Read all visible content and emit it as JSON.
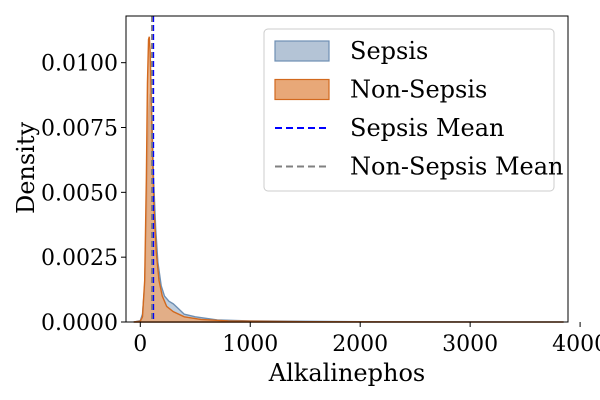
{
  "chart_data": {
    "type": "area",
    "xlabel": "Alkalinephos",
    "ylabel": "Density",
    "xlim": [
      -130,
      3890
    ],
    "ylim": [
      0,
      0.0118
    ],
    "xticks": [
      0,
      1000,
      2000,
      3000,
      4000
    ],
    "xtick_labels": [
      "0",
      "1000",
      "2000",
      "3000",
      "4000"
    ],
    "yticks": [
      0,
      0.0025,
      0.005,
      0.0075,
      0.01
    ],
    "ytick_labels": [
      "0.0000",
      "0.0025",
      "0.0050",
      "0.0075",
      "0.0100"
    ],
    "grid": false,
    "legend_position": "top-right",
    "series": [
      {
        "name": "Sepsis",
        "kind": "density",
        "fill_color": "#b4c4d6",
        "line_color": "#6e8fb3",
        "points": [
          [
            -60,
            0
          ],
          [
            0,
            5e-05
          ],
          [
            20,
            0.0003
          ],
          [
            40,
            0.0014
          ],
          [
            55,
            0.0038
          ],
          [
            70,
            0.0068
          ],
          [
            80,
            0.0082
          ],
          [
            90,
            0.0088
          ],
          [
            100,
            0.0084
          ],
          [
            110,
            0.0072
          ],
          [
            120,
            0.0056
          ],
          [
            140,
            0.0036
          ],
          [
            160,
            0.0023
          ],
          [
            190,
            0.0014
          ],
          [
            220,
            0.001
          ],
          [
            260,
            0.0008
          ],
          [
            300,
            0.0007
          ],
          [
            350,
            0.0005
          ],
          [
            400,
            0.0003
          ],
          [
            500,
            0.0002
          ],
          [
            700,
            8e-05
          ],
          [
            1000,
            4e-05
          ],
          [
            2000,
            1e-05
          ],
          [
            3000,
            5e-06
          ],
          [
            3850,
            0
          ]
        ]
      },
      {
        "name": "Non-Sepsis",
        "kind": "density",
        "fill_color": "#e8a878",
        "line_color": "#d2691e",
        "points": [
          [
            -60,
            0
          ],
          [
            0,
            3e-05
          ],
          [
            20,
            0.0002
          ],
          [
            40,
            0.0016
          ],
          [
            55,
            0.0055
          ],
          [
            65,
            0.0092
          ],
          [
            75,
            0.0109
          ],
          [
            82,
            0.011
          ],
          [
            90,
            0.0104
          ],
          [
            100,
            0.0086
          ],
          [
            110,
            0.0066
          ],
          [
            125,
            0.0044
          ],
          [
            145,
            0.0027
          ],
          [
            170,
            0.0016
          ],
          [
            200,
            0.001
          ],
          [
            240,
            0.0006
          ],
          [
            300,
            0.0004
          ],
          [
            400,
            0.0002
          ],
          [
            550,
            0.0001
          ],
          [
            800,
            4e-05
          ],
          [
            1500,
            1e-05
          ],
          [
            3000,
            4e-06
          ],
          [
            3850,
            0
          ]
        ]
      },
      {
        "name": "Sepsis Mean",
        "kind": "vline",
        "x": 118,
        "line_color": "#0000ff",
        "dash": true
      },
      {
        "name": "Non-Sepsis Mean",
        "kind": "vline",
        "x": 106,
        "line_color": "#808080",
        "dash": true
      }
    ]
  }
}
